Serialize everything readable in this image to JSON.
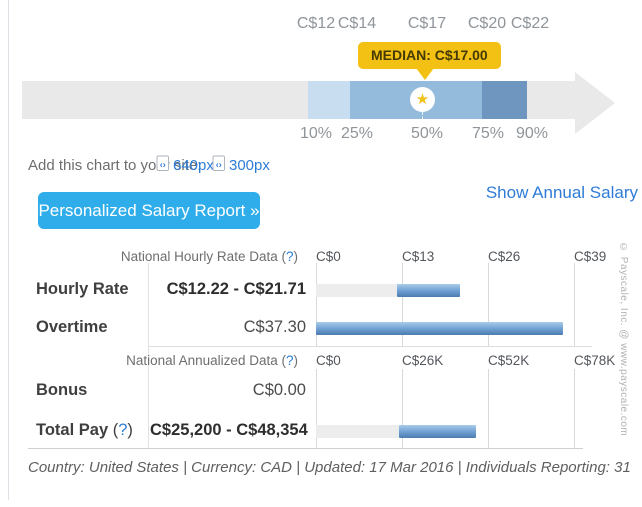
{
  "colors": {
    "accent_button_blue": "#2fadea",
    "link_blue": "#2e7cd6",
    "median_yellow": "#f2c113",
    "range_blue_light": "#c8def0",
    "range_blue_mid": "#94bbdc",
    "range_blue_dark": "#6e96be",
    "track_gray": "#e9e9e9",
    "bar_fill_blue": "#6d9ed2"
  },
  "help": {
    "open": "(",
    "mark": "?",
    "close": ")"
  },
  "chart_data": [
    {
      "type": "percentile-arrow-range",
      "currency": "CAD",
      "scale_labels": [
        "C$12",
        "C$14",
        "C$17",
        "C$20",
        "C$22"
      ],
      "scale_values": [
        12,
        14,
        17,
        20,
        22
      ],
      "percentile_labels": [
        "10%",
        "25%",
        "50%",
        "75%",
        "90%"
      ],
      "percentiles": [
        10,
        25,
        50,
        75,
        90
      ],
      "median_label": "MEDIAN: C$17.00",
      "median_value": 17.0,
      "star_glyph": "★"
    },
    {
      "type": "bar",
      "title": "National Hourly Rate Data",
      "axis_ticks": [
        "C$0",
        "C$13",
        "C$26",
        "C$39"
      ],
      "axis_values": [
        0,
        13,
        26,
        39
      ],
      "axis_max": 39,
      "rows": [
        {
          "label": "Hourly Rate",
          "value_text": "C$12.22 - C$21.71",
          "low": 12.22,
          "high": 21.71
        },
        {
          "label": "Overtime",
          "value_text": "C$37.30",
          "low": 0,
          "high": 37.3
        }
      ]
    },
    {
      "type": "bar",
      "title": "National Annualized Data",
      "axis_ticks": [
        "C$0",
        "C$26K",
        "C$52K",
        "C$78K"
      ],
      "axis_values": [
        0,
        26000,
        52000,
        78000
      ],
      "axis_max": 78000,
      "rows": [
        {
          "label": "Bonus",
          "value_text": "C$0.00",
          "low": 0,
          "high": 0
        },
        {
          "label": "Total Pay",
          "value_text": "C$25,200 - C$48,354",
          "low": 25200,
          "high": 48354
        }
      ]
    }
  ],
  "embed_bar": {
    "label": "Add this chart to your site:",
    "sizes": [
      {
        "label": "640px"
      },
      {
        "label": "300px"
      }
    ]
  },
  "actions": {
    "report_button": "Personalized Salary Report »",
    "annual_link": "Show Annual Salary"
  },
  "footer": {
    "text": "Country: United States | Currency: CAD | Updated: 17 Mar 2016 | Individuals Reporting: 31"
  },
  "watermark": "© Payscale, Inc. @ www.payscale.com"
}
